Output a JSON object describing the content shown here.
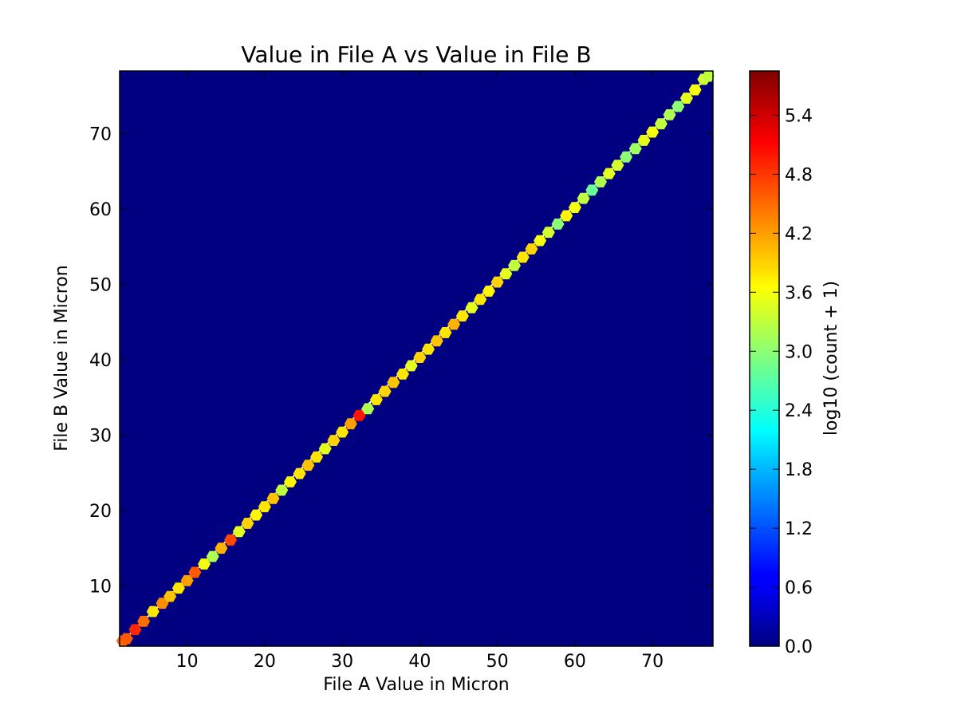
{
  "chart_data": {
    "type": "heatmap",
    "subtype": "hexbin",
    "title": "Value in File A vs Value in File B",
    "xlabel": "File A Value in Micron",
    "ylabel": "File B Value in Micron",
    "xlim": [
      1.3,
      77.8
    ],
    "ylim": [
      2.0,
      78.3
    ],
    "xticks": [
      10,
      20,
      30,
      40,
      50,
      60,
      70
    ],
    "yticks": [
      10,
      20,
      30,
      40,
      50,
      60,
      70
    ],
    "background_color": "#000080",
    "colorbar": {
      "label": "log10 (count + 1)",
      "range": [
        0.0,
        5.85
      ],
      "ticks": [
        "0.0",
        "0.6",
        "1.2",
        "1.8",
        "2.4",
        "3.0",
        "3.6",
        "4.2",
        "4.8",
        "5.4"
      ],
      "colormap": "jet"
    },
    "series": [
      {
        "points": [
          [
            1.7,
            2.7,
            4.5
          ],
          [
            2.2,
            3.0,
            4.6
          ],
          [
            3.3,
            4.2,
            4.9
          ],
          [
            4.4,
            5.3,
            4.5
          ],
          [
            5.6,
            6.6,
            3.8
          ],
          [
            6.8,
            7.7,
            4.3
          ],
          [
            7.8,
            8.6,
            4.0
          ],
          [
            8.9,
            9.7,
            3.8
          ],
          [
            10.0,
            10.7,
            4.2
          ],
          [
            11.0,
            11.8,
            4.6
          ],
          [
            12.2,
            12.9,
            3.6
          ],
          [
            13.3,
            13.9,
            3.2
          ],
          [
            14.4,
            15.0,
            4.1
          ],
          [
            15.6,
            16.1,
            4.7
          ],
          [
            16.7,
            17.2,
            3.5
          ],
          [
            17.8,
            18.3,
            3.9
          ],
          [
            18.9,
            19.4,
            3.7
          ],
          [
            20.0,
            20.5,
            3.8
          ],
          [
            21.1,
            21.6,
            4.0
          ],
          [
            22.2,
            22.7,
            3.3
          ],
          [
            23.3,
            23.8,
            3.7
          ],
          [
            24.5,
            24.9,
            3.8
          ],
          [
            25.6,
            26.0,
            4.0
          ],
          [
            26.7,
            27.1,
            3.8
          ],
          [
            27.8,
            28.2,
            3.5
          ],
          [
            28.9,
            29.3,
            3.9
          ],
          [
            30.0,
            30.4,
            3.8
          ],
          [
            31.1,
            31.5,
            4.2
          ],
          [
            32.2,
            32.6,
            5.0
          ],
          [
            33.3,
            33.5,
            3.2
          ],
          [
            34.4,
            34.7,
            3.8
          ],
          [
            35.5,
            35.8,
            3.9
          ],
          [
            36.6,
            37.0,
            4.0
          ],
          [
            37.8,
            38.1,
            3.8
          ],
          [
            38.9,
            39.2,
            3.5
          ],
          [
            40.0,
            40.3,
            3.9
          ],
          [
            41.1,
            41.4,
            3.8
          ],
          [
            42.2,
            42.5,
            4.0
          ],
          [
            43.3,
            43.6,
            3.8
          ],
          [
            44.4,
            44.7,
            4.1
          ],
          [
            45.5,
            45.8,
            3.8
          ],
          [
            46.7,
            46.9,
            3.5
          ],
          [
            47.8,
            48.0,
            3.8
          ],
          [
            48.9,
            49.1,
            3.7
          ],
          [
            50.0,
            50.3,
            3.9
          ],
          [
            51.1,
            51.4,
            3.5
          ],
          [
            52.2,
            52.5,
            3.3
          ],
          [
            53.3,
            53.6,
            3.8
          ],
          [
            54.4,
            54.7,
            3.9
          ],
          [
            55.5,
            55.8,
            3.6
          ],
          [
            56.6,
            56.9,
            3.4
          ],
          [
            57.8,
            58.0,
            3.0
          ],
          [
            58.9,
            59.1,
            3.7
          ],
          [
            60.0,
            60.2,
            3.6
          ],
          [
            61.1,
            61.4,
            3.3
          ],
          [
            62.2,
            62.5,
            2.8
          ],
          [
            63.3,
            63.6,
            3.2
          ],
          [
            64.4,
            64.7,
            3.5
          ],
          [
            65.5,
            65.8,
            3.4
          ],
          [
            66.6,
            66.9,
            3.0
          ],
          [
            67.8,
            68.0,
            3.1
          ],
          [
            68.9,
            69.1,
            3.5
          ],
          [
            70.0,
            70.2,
            3.6
          ],
          [
            71.1,
            71.3,
            3.3
          ],
          [
            72.2,
            72.5,
            3.2
          ],
          [
            73.3,
            73.6,
            3.0
          ],
          [
            74.4,
            74.7,
            3.5
          ],
          [
            75.5,
            75.8,
            3.6
          ],
          [
            76.6,
            77.2,
            3.4
          ],
          [
            77.2,
            77.6,
            3.3
          ]
        ]
      }
    ]
  }
}
